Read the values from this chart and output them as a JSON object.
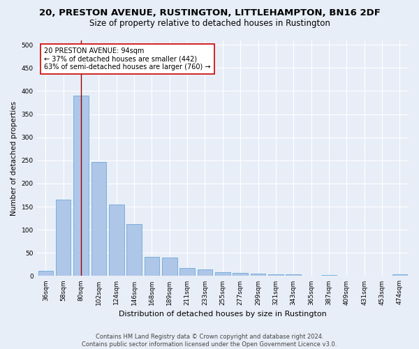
{
  "title": "20, PRESTON AVENUE, RUSTINGTON, LITTLEHAMPTON, BN16 2DF",
  "subtitle": "Size of property relative to detached houses in Rustington",
  "xlabel": "Distribution of detached houses by size in Rustington",
  "ylabel": "Number of detached properties",
  "categories": [
    "36sqm",
    "58sqm",
    "80sqm",
    "102sqm",
    "124sqm",
    "146sqm",
    "168sqm",
    "189sqm",
    "211sqm",
    "233sqm",
    "255sqm",
    "277sqm",
    "299sqm",
    "321sqm",
    "343sqm",
    "365sqm",
    "387sqm",
    "409sqm",
    "431sqm",
    "453sqm",
    "474sqm"
  ],
  "values": [
    11,
    165,
    390,
    247,
    155,
    113,
    42,
    40,
    17,
    14,
    8,
    7,
    5,
    4,
    3,
    0,
    2,
    0,
    0,
    0,
    3
  ],
  "bar_color": "#aec6e8",
  "bar_edge_color": "#5a9fd4",
  "vline_x_index": 2,
  "vline_color": "#990000",
  "annotation_text": "20 PRESTON AVENUE: 94sqm\n← 37% of detached houses are smaller (442)\n63% of semi-detached houses are larger (760) →",
  "annotation_box_color": "#ffffff",
  "annotation_box_edge_color": "#cc0000",
  "ylim": [
    0,
    510
  ],
  "yticks": [
    0,
    50,
    100,
    150,
    200,
    250,
    300,
    350,
    400,
    450,
    500
  ],
  "footer_text": "Contains HM Land Registry data © Crown copyright and database right 2024.\nContains public sector information licensed under the Open Government Licence v3.0.",
  "bg_color": "#e8eef7",
  "plot_bg_color": "#e8eef7",
  "grid_color": "#ffffff",
  "title_fontsize": 9.5,
  "subtitle_fontsize": 8.5,
  "xlabel_fontsize": 8,
  "ylabel_fontsize": 7.5,
  "tick_fontsize": 6.5,
  "annotation_fontsize": 7,
  "footer_fontsize": 6
}
